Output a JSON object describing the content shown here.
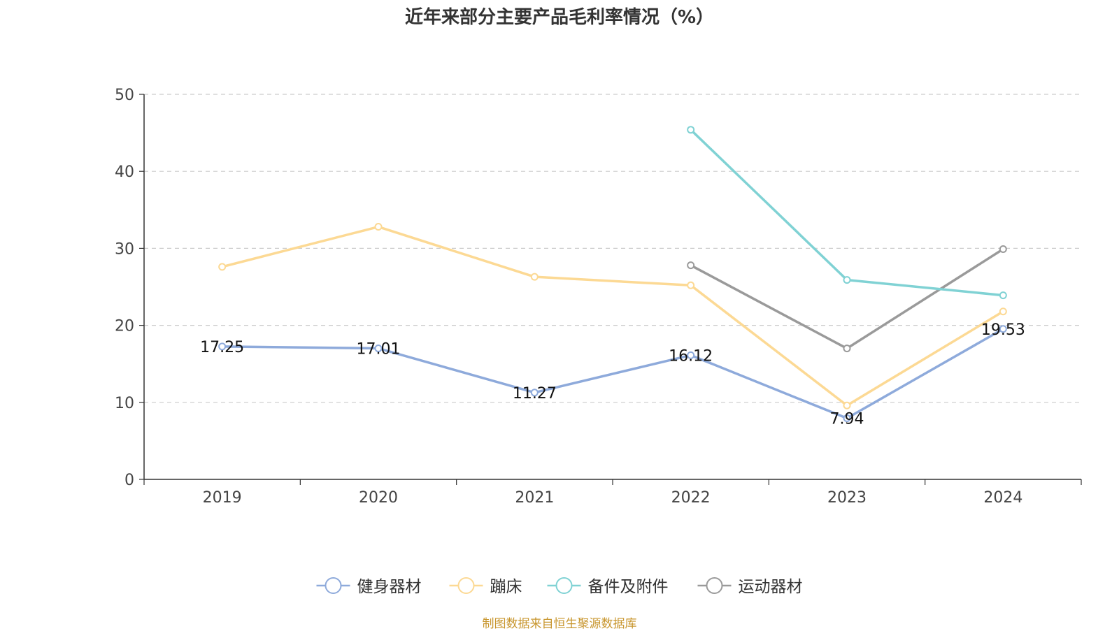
{
  "title": "近年来部分主要产品毛利率情况（%）",
  "source": "制图数据来自恒生聚源数据库",
  "chart_data": {
    "type": "line",
    "categories": [
      "2019",
      "2020",
      "2021",
      "2022",
      "2023",
      "2024"
    ],
    "ylim": [
      0,
      50
    ],
    "yticks": [
      0,
      10,
      20,
      30,
      40,
      50
    ],
    "grid": true,
    "legend_position": "bottom",
    "series": [
      {
        "name": "健身器材",
        "color": "#8eaadb",
        "values": [
          17.25,
          17.01,
          11.27,
          16.12,
          7.94,
          19.53
        ],
        "labels": [
          "17.25",
          "17.01",
          "11.27",
          "16.12",
          "7.94",
          "19.53"
        ]
      },
      {
        "name": "蹦床",
        "color": "#fcd994",
        "values": [
          27.6,
          32.8,
          26.3,
          25.2,
          9.6,
          21.8
        ]
      },
      {
        "name": "备件及附件",
        "color": "#80d2d4",
        "values": [
          null,
          null,
          null,
          45.4,
          25.9,
          23.9
        ]
      },
      {
        "name": "运动器材",
        "color": "#9a9a9a",
        "values": [
          null,
          null,
          null,
          27.8,
          17.0,
          29.9
        ]
      }
    ]
  }
}
